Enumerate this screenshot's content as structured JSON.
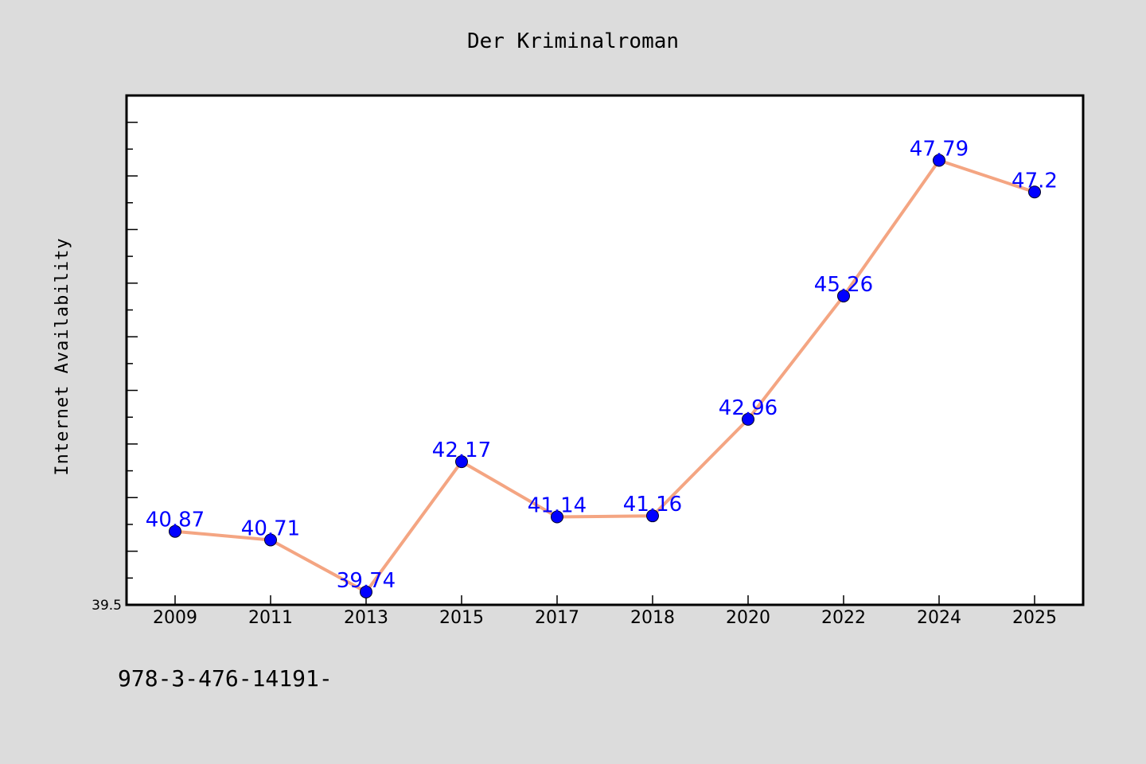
{
  "chart_data": {
    "type": "line",
    "title": "Der Kriminalroman",
    "xlabel": "",
    "ylabel": "Internet Availability",
    "categories": [
      "2009",
      "2011",
      "2013",
      "2015",
      "2017",
      "2018",
      "2020",
      "2022",
      "2024",
      "2025"
    ],
    "series": [
      {
        "values": [
          40.87,
          40.71,
          39.74,
          42.17,
          41.14,
          41.16,
          42.96,
          45.26,
          47.79,
          47.2
        ],
        "labels": [
          "40.87",
          "40.71",
          "39.74",
          "42.17",
          "41.14",
          "41.16",
          "42.96",
          "45.26",
          "47.79",
          "47.2"
        ]
      }
    ],
    "ylim": [
      39.5,
      49
    ],
    "yticks_labeled": [
      "39.5"
    ],
    "grid": false,
    "colors": {
      "line": "#f4a582",
      "marker": "#0000ff",
      "label": "#0000ff",
      "background": "#dcdcdc",
      "plot_background": "#ffffff"
    }
  },
  "footer": {
    "text": "978-3-476-14191-"
  }
}
